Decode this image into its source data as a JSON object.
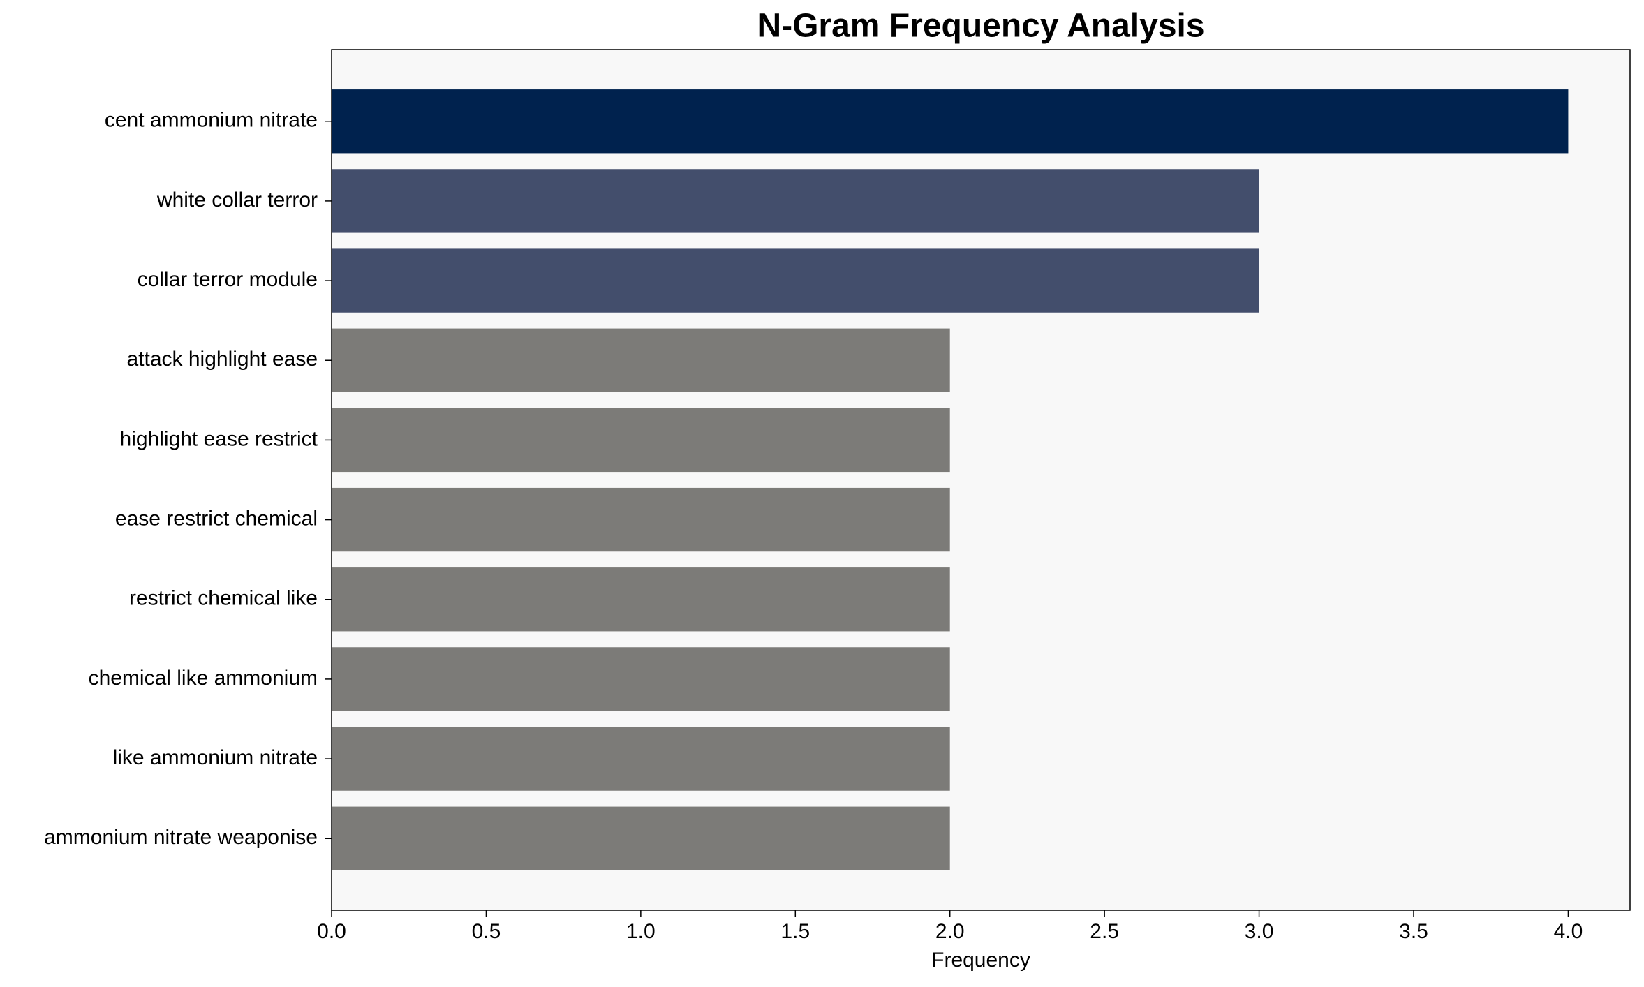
{
  "chart_data": {
    "type": "barh",
    "title": "N-Gram Frequency Analysis",
    "x_label": "Frequency",
    "categories": [
      "cent ammonium nitrate",
      "white collar terror",
      "collar terror module",
      "attack highlight ease",
      "highlight ease restrict",
      "ease restrict chemical",
      "restrict chemical like",
      "chemical like ammonium",
      "like ammonium nitrate",
      "ammonium nitrate weaponise"
    ],
    "values": [
      4,
      3,
      3,
      2,
      2,
      2,
      2,
      2,
      2,
      2
    ],
    "colors": [
      "#00224e",
      "#434e6c",
      "#434e6c",
      "#7c7b78",
      "#7c7b78",
      "#7c7b78",
      "#7c7b78",
      "#7c7b78",
      "#7c7b78",
      "#7c7b78"
    ],
    "xlim": [
      0,
      4.2
    ],
    "xticks": [
      {
        "value": 0,
        "label": "0.0"
      },
      0.5,
      {
        "value": 1,
        "label": "1.0"
      },
      1.5,
      {
        "value": 2,
        "label": "2.0"
      },
      2.5,
      {
        "value": 3,
        "label": "3.0"
      },
      3.5,
      {
        "value": 4,
        "label": "4.0"
      }
    ],
    "grid": false
  }
}
